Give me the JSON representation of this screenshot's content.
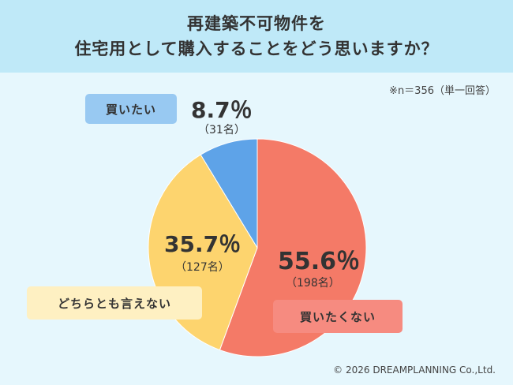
{
  "header": {
    "title_line1": "再建築不可物件を",
    "title_line2": "住宅用として購入することをどう思いますか？"
  },
  "note": "※n＝356（単一回答）",
  "copyright": "© 2026 DREAMPLANNING Co.,Ltd.",
  "chart_data": {
    "type": "pie",
    "title": "再建築不可物件を住宅用として購入することをどう思いますか？",
    "start_angle_deg": 0,
    "direction": "clockwise",
    "slices": [
      {
        "label": "買いたくない",
        "value": 55.6,
        "count_label": "（198名）",
        "pct_label": "55.6％",
        "color": "#f47a67",
        "tag_color": "#f68b80"
      },
      {
        "label": "どちらとも言えない",
        "value": 35.7,
        "count_label": "（127名）",
        "pct_label": "35.7％",
        "color": "#fdd46e",
        "tag_color": "#fef0c2"
      },
      {
        "label": "買いたい",
        "value": 8.7,
        "count_label": "（31名）",
        "pct_label": "8.7％",
        "color": "#5ea3e8",
        "tag_color": "#98c9f2"
      }
    ]
  }
}
